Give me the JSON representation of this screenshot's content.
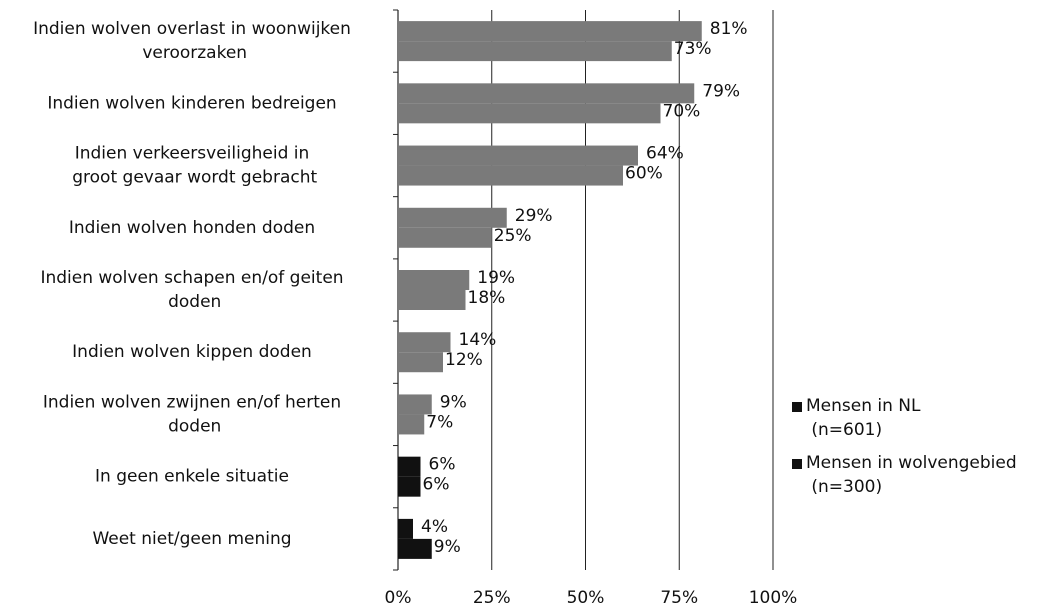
{
  "chart_data": {
    "type": "hbar",
    "categories": [
      "Indien wolven overlast in woonwijken veroorzaken",
      "Indien wolven kinderen bedreigen",
      "Indien verkeersveiligheid in groot gevaar wordt gebracht",
      "Indien wolven honden doden",
      "Indien wolven schapen en/of geiten doden",
      "Indien wolven kippen doden",
      "Indien wolven zwijnen en/of herten doden",
      "In geen enkele situatie",
      "Weet niet/geen mening"
    ],
    "bar_colors": [
      "#7a7a7a",
      "#7a7a7a",
      "#7a7a7a",
      "#7a7a7a",
      "#7a7a7a",
      "#7a7a7a",
      "#7a7a7a",
      "#111111",
      "#111111"
    ],
    "series": [
      {
        "name": "Mensen in NL (n=601)",
        "color": "#111111",
        "values": [
          81,
          79,
          64,
          29,
          19,
          14,
          9,
          6,
          4
        ],
        "value_labels": [
          "81%",
          "79%",
          "64%",
          "29%",
          "19%",
          "14%",
          "9%",
          "6%",
          "4%"
        ]
      },
      {
        "name": "Mensen in wolvengebied (n=300)",
        "color": "#111111",
        "values": [
          73,
          70,
          60,
          25,
          18,
          12,
          7,
          6,
          9
        ],
        "value_labels": [
          "73%",
          "70%",
          "60%",
          "25%",
          "18%",
          "12%",
          "7%",
          "6%",
          "9%"
        ]
      }
    ],
    "xlim": [
      0,
      100
    ],
    "xticks": [
      {
        "value": 0,
        "label": "0%"
      },
      {
        "value": 25,
        "label": "25%"
      },
      {
        "value": 50,
        "label": "50%"
      },
      {
        "value": 75,
        "label": "75%"
      },
      {
        "value": 100,
        "label": "100%"
      }
    ],
    "grid": true,
    "legend": "right"
  }
}
